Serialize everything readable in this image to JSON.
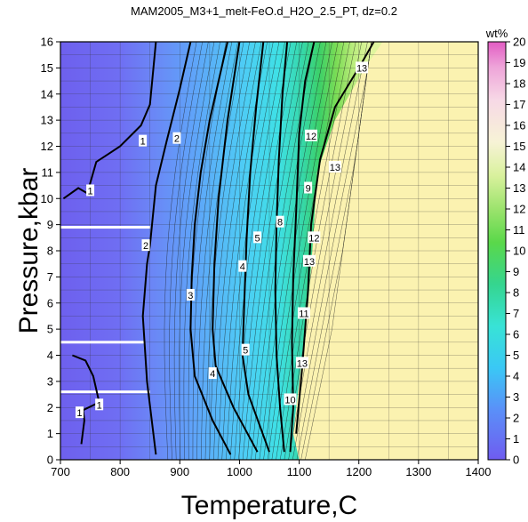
{
  "chart_data": {
    "type": "heatmap",
    "title": "MAM2005_M3+1_melt-FeO.d_H2O_2.5_PT, dz=0.2",
    "xlabel": "Temperature,C",
    "ylabel": "Pressure,kbar",
    "xlim": [
      700,
      1400
    ],
    "ylim": [
      0,
      16
    ],
    "xticks": [
      "700",
      "800",
      "900",
      "1000",
      "1100",
      "1200",
      "1300",
      "1400"
    ],
    "yticks": [
      "0",
      "1",
      "2",
      "3",
      "4",
      "5",
      "6",
      "7",
      "8",
      "9",
      "10",
      "11",
      "12",
      "13",
      "14",
      "15",
      "16"
    ],
    "grid": true,
    "colorbar": {
      "label": "wt%",
      "min": 0,
      "max": 20,
      "ticks": [
        "0",
        "1",
        "2",
        "3",
        "4",
        "5",
        "6",
        "7",
        "8",
        "9",
        "10",
        "11",
        "12",
        "13",
        "14",
        "15",
        "16",
        "17",
        "18",
        "19",
        "20"
      ]
    },
    "no_data_region_color": "#fbf2b0",
    "contours": [
      {
        "level": 1,
        "label": "1",
        "points": [
          [
            735,
            0.6
          ],
          [
            740,
            1.5
          ],
          [
            738,
            1.9
          ],
          [
            765,
            2.2
          ],
          [
            755,
            3.2
          ],
          [
            742,
            3.8
          ],
          [
            720,
            4.0
          ]
        ]
      },
      {
        "level": 1,
        "label": "1",
        "points": [
          [
            705,
            10.0
          ],
          [
            730,
            10.4
          ],
          [
            745,
            10.2
          ],
          [
            760,
            11.4
          ],
          [
            800,
            12.0
          ],
          [
            835,
            12.8
          ],
          [
            850,
            13.6
          ],
          [
            860,
            16.0
          ]
        ]
      },
      {
        "level": 2,
        "label": "2",
        "points": [
          [
            860,
            0.2
          ],
          [
            845,
            3.0
          ],
          [
            838,
            5.5
          ],
          [
            845,
            7.5
          ],
          [
            850,
            8.2
          ],
          [
            860,
            10.5
          ],
          [
            878,
            12.2
          ],
          [
            900,
            14.2
          ],
          [
            918,
            16.0
          ]
        ]
      },
      {
        "level": 3,
        "label": "3",
        "points": [
          [
            985,
            0.2
          ],
          [
            955,
            1.5
          ],
          [
            925,
            3.2
          ],
          [
            918,
            5.0
          ],
          [
            920,
            7.0
          ],
          [
            925,
            9.0
          ],
          [
            935,
            11.0
          ],
          [
            950,
            13.0
          ],
          [
            965,
            14.5
          ],
          [
            980,
            16.0
          ]
        ]
      },
      {
        "level": 4,
        "label": "4",
        "points": [
          [
            1030,
            0.3
          ],
          [
            990,
            2.0
          ],
          [
            960,
            3.6
          ],
          [
            955,
            5.0
          ],
          [
            958,
            7.5
          ],
          [
            965,
            10.0
          ],
          [
            980,
            13.0
          ],
          [
            1000,
            16.0
          ]
        ]
      },
      {
        "level": 5,
        "label": "5",
        "points": [
          [
            1050,
            0.3
          ],
          [
            1015,
            2.5
          ],
          [
            1005,
            4.0
          ],
          [
            1008,
            6.0
          ],
          [
            1012,
            8.5
          ],
          [
            1018,
            11.0
          ],
          [
            1028,
            13.5
          ],
          [
            1040,
            16.0
          ]
        ]
      },
      {
        "level": 8,
        "label": "8",
        "points": [
          [
            1075,
            0.3
          ],
          [
            1068,
            2.0
          ],
          [
            1062,
            4.0
          ],
          [
            1060,
            6.5
          ],
          [
            1062,
            9.0
          ],
          [
            1066,
            11.5
          ],
          [
            1072,
            14.0
          ],
          [
            1080,
            16.0
          ]
        ]
      },
      {
        "level": 10,
        "label": "10",
        "points": [
          [
            1085,
            0.3
          ],
          [
            1090,
            2.0
          ],
          [
            1088,
            4.5
          ],
          [
            1090,
            7.0
          ],
          [
            1095,
            9.5
          ],
          [
            1100,
            12.5
          ],
          [
            1110,
            14.5
          ],
          [
            1125,
            16.0
          ]
        ]
      },
      {
        "level": 13,
        "label": "13",
        "points": [
          [
            1095,
            1.0
          ],
          [
            1105,
            3.5
          ],
          [
            1115,
            6.5
          ],
          [
            1120,
            9.0
          ],
          [
            1135,
            11.5
          ],
          [
            1160,
            13.5
          ],
          [
            1205,
            15.2
          ],
          [
            1225,
            16.0
          ]
        ]
      }
    ],
    "contour_labels": [
      {
        "text": "1",
        "x": 732,
        "y": 1.8
      },
      {
        "text": "1",
        "x": 765,
        "y": 2.1
      },
      {
        "text": "1",
        "x": 750,
        "y": 10.3
      },
      {
        "text": "1",
        "x": 838,
        "y": 12.2
      },
      {
        "text": "2",
        "x": 843,
        "y": 8.2
      },
      {
        "text": "2",
        "x": 895,
        "y": 12.3
      },
      {
        "text": "3",
        "x": 918,
        "y": 6.3
      },
      {
        "text": "4",
        "x": 955,
        "y": 3.3
      },
      {
        "text": "4",
        "x": 1005,
        "y": 7.4
      },
      {
        "text": "5",
        "x": 1010,
        "y": 4.2
      },
      {
        "text": "5",
        "x": 1030,
        "y": 8.5
      },
      {
        "text": "8",
        "x": 1068,
        "y": 9.1
      },
      {
        "text": "10",
        "x": 1085,
        "y": 2.3
      },
      {
        "text": "11",
        "x": 1108,
        "y": 5.6
      },
      {
        "text": "12",
        "x": 1125,
        "y": 8.5
      },
      {
        "text": "12",
        "x": 1120,
        "y": 12.4
      },
      {
        "text": "13",
        "x": 1105,
        "y": 3.7
      },
      {
        "text": "13",
        "x": 1117,
        "y": 7.6
      },
      {
        "text": "13",
        "x": 1160,
        "y": 11.2
      },
      {
        "text": "13",
        "x": 1205,
        "y": 15.0
      },
      {
        "text": "9",
        "x": 1115,
        "y": 10.4
      }
    ]
  }
}
